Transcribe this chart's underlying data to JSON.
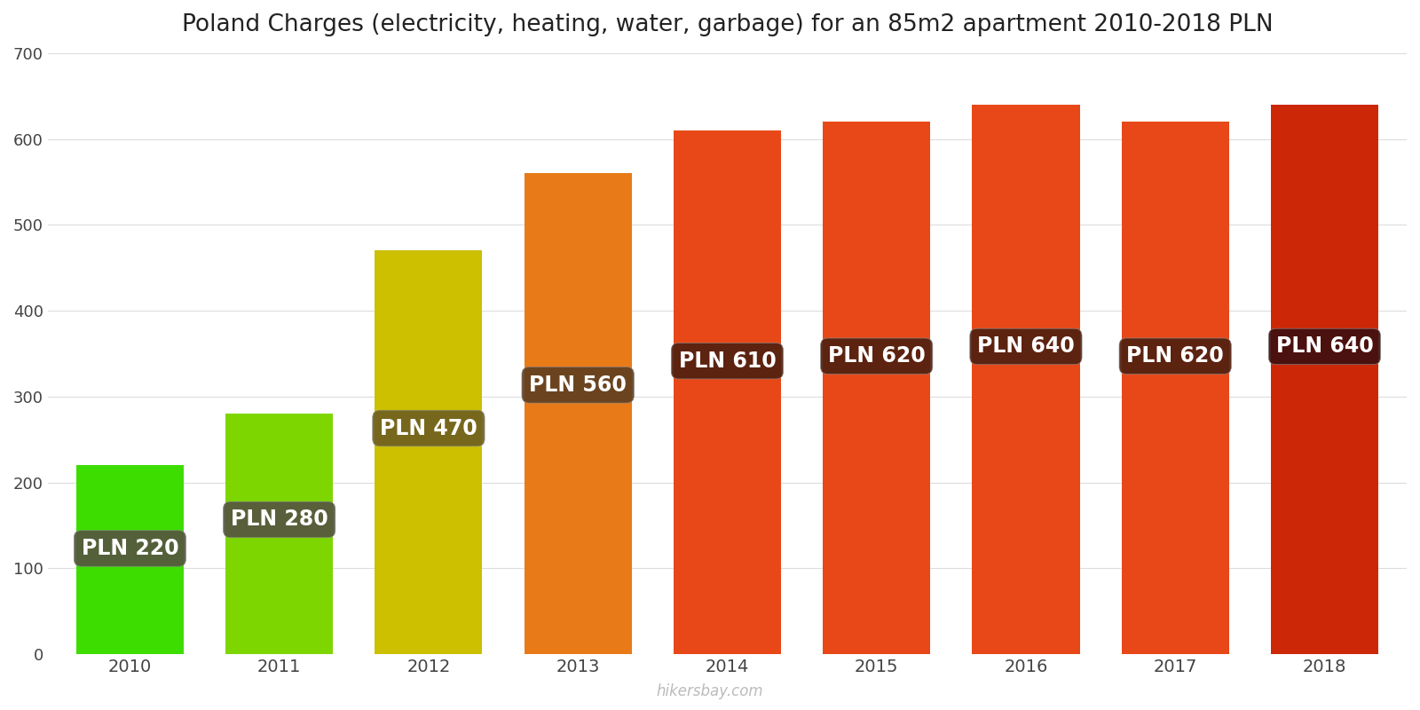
{
  "years": [
    2010,
    2011,
    2012,
    2013,
    2014,
    2015,
    2016,
    2017,
    2018
  ],
  "values": [
    220,
    280,
    470,
    560,
    610,
    620,
    640,
    620,
    640
  ],
  "bar_colors": [
    "#3ddd00",
    "#7dd600",
    "#ccc000",
    "#e87a18",
    "#e84818",
    "#e84818",
    "#e84818",
    "#e84818",
    "#cc2808"
  ],
  "label_bg_colors": [
    "#555540",
    "#555540",
    "#706020",
    "#604020",
    "#502010",
    "#502010",
    "#502010",
    "#502010",
    "#401010"
  ],
  "labels": [
    "PLN 220",
    "PLN 280",
    "PLN 470",
    "PLN 560",
    "PLN 610",
    "PLN 620",
    "PLN 640",
    "PLN 620",
    "PLN 640"
  ],
  "title": "Poland Charges (electricity, heating, water, garbage) for an 85m2 apartment 2010-2018 PLN",
  "ylim": [
    0,
    700
  ],
  "yticks": [
    0,
    100,
    200,
    300,
    400,
    500,
    600,
    700
  ],
  "watermark": "hikersbay.com",
  "title_fontsize": 19,
  "label_fontsize": 17,
  "background_color": "#ffffff"
}
